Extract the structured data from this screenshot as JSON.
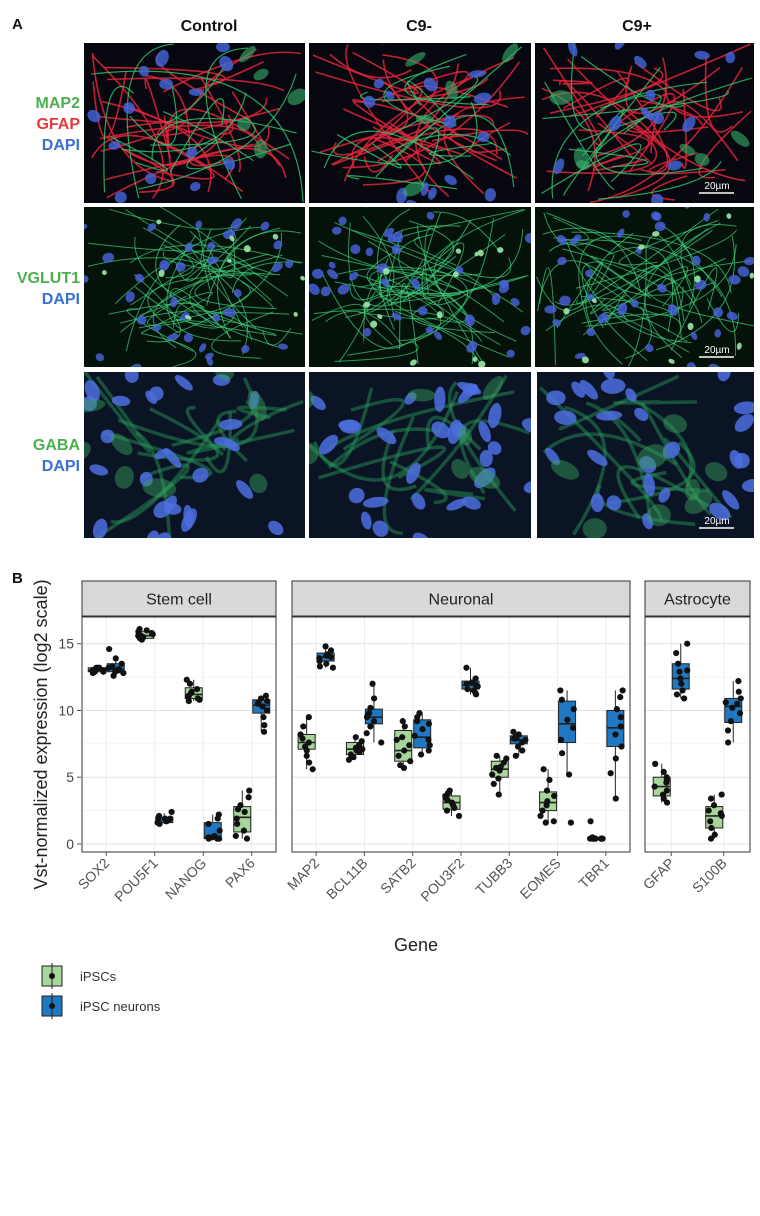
{
  "panelA": {
    "letter": "A",
    "columns": [
      "Control",
      "C9-",
      "C9+"
    ],
    "rows": [
      {
        "labels": [
          {
            "text": "MAP2",
            "color": "#4caf50"
          },
          {
            "text": "GFAP",
            "color": "#e53935"
          },
          {
            "text": "DAPI",
            "color": "#3a6fd8"
          }
        ]
      },
      {
        "labels": [
          {
            "text": "VGLUT1",
            "color": "#4caf50"
          },
          {
            "text": "DAPI",
            "color": "#3a6fd8"
          }
        ]
      },
      {
        "labels": [
          {
            "text": "GABA",
            "color": "#4caf50"
          },
          {
            "text": "DAPI",
            "color": "#3a6fd8"
          }
        ]
      }
    ],
    "scalebar": "20µm"
  },
  "panelB": {
    "letter": "B"
  },
  "chart_data": {
    "type": "box",
    "ylabel": "Vst-normalized expression (log2 scale)",
    "xlabel": "Gene",
    "ylim": [
      -0.6,
      17.0
    ],
    "yticks": [
      0,
      5,
      10,
      15
    ],
    "grid": true,
    "legend_position": "bottom-left",
    "series": [
      {
        "name": "iPSCs",
        "color": "#a8d59a"
      },
      {
        "name": "iPSC neurons",
        "color": "#1f78c1"
      }
    ],
    "facets": [
      {
        "title": "Stem cell",
        "genes": [
          {
            "name": "SOX2",
            "boxes": [
              {
                "series": 0,
                "q1": 12.9,
                "median": 13.0,
                "q3": 13.2,
                "lo": 12.8,
                "hi": 13.3,
                "points": [
                  13.0,
                  12.9,
                  13.1,
                  13.2,
                  12.8,
                  13.0,
                  13.1,
                  12.9,
                  13.2,
                  13.0
                ]
              },
              {
                "series": 1,
                "q1": 12.9,
                "median": 13.1,
                "q3": 13.5,
                "lo": 12.6,
                "hi": 13.9,
                "points": [
                  14.6,
                  13.9,
                  13.5,
                  13.3,
                  13.1,
                  13.0,
                  12.9,
                  12.8,
                  12.6,
                  13.2
                ]
              }
            ]
          },
          {
            "name": "POU5F1",
            "boxes": [
              {
                "series": 0,
                "q1": 15.4,
                "median": 15.6,
                "q3": 15.9,
                "lo": 15.3,
                "hi": 16.1,
                "points": [
                  16.1,
                  16.0,
                  15.9,
                  15.7,
                  15.6,
                  15.5,
                  15.4,
                  15.3,
                  15.8,
                  15.6
                ]
              },
              {
                "series": 1,
                "q1": 1.6,
                "median": 1.8,
                "q3": 2.0,
                "lo": 1.5,
                "hi": 2.3,
                "points": [
                  2.4,
                  2.1,
                  1.9,
                  1.8,
                  1.7,
                  1.6,
                  1.5,
                  1.9,
                  1.8,
                  2.0
                ]
              }
            ]
          },
          {
            "name": "NANOG",
            "boxes": [
              {
                "series": 0,
                "q1": 10.9,
                "median": 11.2,
                "q3": 11.7,
                "lo": 10.7,
                "hi": 12.3,
                "points": [
                  12.3,
                  12.0,
                  11.6,
                  11.3,
                  11.1,
                  10.9,
                  10.8,
                  10.7,
                  11.4,
                  11.0
                ]
              },
              {
                "series": 1,
                "q1": 0.4,
                "median": 0.5,
                "q3": 1.6,
                "lo": 0.4,
                "hi": 2.2,
                "points": [
                  2.2,
                  1.9,
                  1.5,
                  1.0,
                  0.6,
                  0.5,
                  0.4,
                  0.4,
                  0.4,
                  0.5
                ]
              }
            ]
          },
          {
            "name": "PAX6",
            "boxes": [
              {
                "series": 0,
                "q1": 0.9,
                "median": 2.0,
                "q3": 2.8,
                "lo": 0.4,
                "hi": 4.0,
                "points": [
                  4.0,
                  3.5,
                  2.9,
                  2.4,
                  1.9,
                  1.5,
                  1.0,
                  0.6,
                  0.4,
                  2.6
                ]
              },
              {
                "series": 1,
                "q1": 9.8,
                "median": 10.4,
                "q3": 10.8,
                "lo": 8.4,
                "hi": 11.1,
                "points": [
                  11.1,
                  10.9,
                  10.7,
                  10.5,
                  10.3,
                  10.0,
                  9.5,
                  8.9,
                  8.4,
                  10.6
                ]
              }
            ]
          }
        ]
      },
      {
        "title": "Neuronal",
        "genes": [
          {
            "name": "MAP2",
            "boxes": [
              {
                "series": 0,
                "q1": 7.1,
                "median": 7.6,
                "q3": 8.2,
                "lo": 5.6,
                "hi": 9.5,
                "points": [
                  9.5,
                  8.8,
                  8.2,
                  7.9,
                  7.6,
                  7.3,
                  7.0,
                  6.6,
                  6.1,
                  5.6
                ]
              },
              {
                "series": 1,
                "q1": 13.7,
                "median": 14.0,
                "q3": 14.3,
                "lo": 13.2,
                "hi": 14.8,
                "points": [
                  14.8,
                  14.5,
                  14.2,
                  14.0,
                  13.9,
                  13.7,
                  13.5,
                  13.3,
                  14.1,
                  13.2
                ]
              }
            ]
          },
          {
            "name": "BCL11B",
            "boxes": [
              {
                "series": 0,
                "q1": 6.7,
                "median": 7.1,
                "q3": 7.6,
                "lo": 6.3,
                "hi": 8.0,
                "points": [
                  8.0,
                  7.7,
                  7.4,
                  7.2,
                  7.0,
                  6.9,
                  6.7,
                  6.5,
                  6.3,
                  7.1
                ]
              },
              {
                "series": 1,
                "q1": 9.0,
                "median": 9.5,
                "q3": 10.1,
                "lo": 7.6,
                "hi": 12.0,
                "points": [
                  12.0,
                  10.9,
                  10.2,
                  9.8,
                  9.5,
                  9.2,
                  8.8,
                  8.3,
                  7.6,
                  9.6
                ]
              }
            ]
          },
          {
            "name": "SATB2",
            "boxes": [
              {
                "series": 0,
                "q1": 6.2,
                "median": 7.0,
                "q3": 8.5,
                "lo": 5.7,
                "hi": 9.2,
                "points": [
                  9.2,
                  8.8,
                  8.0,
                  7.4,
                  7.0,
                  6.6,
                  6.2,
                  5.9,
                  5.7,
                  7.8
                ]
              },
              {
                "series": 1,
                "q1": 7.2,
                "median": 8.0,
                "q3": 9.3,
                "lo": 6.7,
                "hi": 9.8,
                "points": [
                  9.8,
                  9.5,
                  9.0,
                  8.6,
                  8.1,
                  7.8,
                  7.4,
                  7.0,
                  6.7,
                  9.2
                ]
              }
            ]
          },
          {
            "name": "POU3F2",
            "boxes": [
              {
                "series": 0,
                "q1": 2.6,
                "median": 3.1,
                "q3": 3.6,
                "lo": 2.1,
                "hi": 4.0,
                "points": [
                  4.0,
                  3.8,
                  3.6,
                  3.3,
                  3.1,
                  2.9,
                  2.7,
                  2.5,
                  2.1,
                  3.4
                ]
              },
              {
                "series": 1,
                "q1": 11.6,
                "median": 11.9,
                "q3": 12.2,
                "lo": 11.2,
                "hi": 13.2,
                "points": [
                  13.2,
                  12.4,
                  12.1,
                  11.9,
                  11.8,
                  11.6,
                  11.5,
                  11.3,
                  11.2,
                  12.0
                ]
              }
            ]
          },
          {
            "name": "TUBB3",
            "boxes": [
              {
                "series": 0,
                "q1": 5.0,
                "median": 5.6,
                "q3": 6.2,
                "lo": 3.7,
                "hi": 6.6,
                "points": [
                  6.6,
                  6.4,
                  6.1,
                  5.8,
                  5.5,
                  5.2,
                  4.9,
                  4.5,
                  3.7,
                  5.7
                ]
              },
              {
                "series": 1,
                "q1": 7.5,
                "median": 7.8,
                "q3": 8.1,
                "lo": 6.6,
                "hi": 8.4,
                "points": [
                  8.4,
                  8.2,
                  8.0,
                  7.9,
                  7.8,
                  7.6,
                  7.3,
                  7.0,
                  6.6,
                  7.9
                ]
              }
            ]
          },
          {
            "name": "EOMES",
            "boxes": [
              {
                "series": 0,
                "q1": 2.5,
                "median": 3.1,
                "q3": 3.9,
                "lo": 1.6,
                "hi": 5.6,
                "points": [
                  5.6,
                  4.8,
                  4.0,
                  3.6,
                  3.2,
                  2.9,
                  2.5,
                  2.1,
                  1.7,
                  1.6
                ]
              },
              {
                "series": 1,
                "q1": 7.6,
                "median": 9.0,
                "q3": 10.7,
                "lo": 5.2,
                "hi": 11.5,
                "points": [
                  11.5,
                  10.8,
                  10.1,
                  9.3,
                  8.7,
                  7.8,
                  6.8,
                  5.2,
                  1.6
                ]
              }
            ]
          },
          {
            "name": "TBR1",
            "boxes": [
              {
                "series": 0,
                "q1": 0.4,
                "median": 0.4,
                "q3": 0.5,
                "lo": 0.4,
                "hi": 0.5,
                "points": [
                  1.7,
                  0.5,
                  0.4,
                  0.4,
                  0.4,
                  0.4,
                  0.4,
                  0.4,
                  0.4,
                  0.4
                ]
              },
              {
                "series": 1,
                "q1": 7.3,
                "median": 8.7,
                "q3": 10.0,
                "lo": 3.4,
                "hi": 11.5,
                "points": [
                  11.5,
                  11.0,
                  10.1,
                  9.5,
                  8.8,
                  8.2,
                  7.3,
                  6.4,
                  5.3,
                  3.4
                ]
              }
            ]
          }
        ]
      },
      {
        "title": "Astrocyte",
        "genes": [
          {
            "name": "GFAP",
            "boxes": [
              {
                "series": 0,
                "q1": 3.6,
                "median": 4.3,
                "q3": 5.0,
                "lo": 3.1,
                "hi": 6.0,
                "points": [
                  6.0,
                  5.4,
                  5.0,
                  4.6,
                  4.3,
                  4.0,
                  3.7,
                  3.4,
                  3.1,
                  4.8
                ]
              },
              {
                "series": 1,
                "q1": 11.6,
                "median": 12.4,
                "q3": 13.5,
                "lo": 10.9,
                "hi": 15.0,
                "points": [
                  15.0,
                  14.3,
                  13.5,
                  12.9,
                  12.4,
                  12.0,
                  11.5,
                  11.2,
                  10.9,
                  13.0
                ]
              }
            ]
          },
          {
            "name": "S100B",
            "boxes": [
              {
                "series": 0,
                "q1": 1.2,
                "median": 2.1,
                "q3": 2.8,
                "lo": 0.4,
                "hi": 3.7,
                "points": [
                  3.7,
                  3.4,
                  2.9,
                  2.5,
                  2.1,
                  1.7,
                  1.2,
                  0.7,
                  0.4,
                  2.3
                ]
              },
              {
                "series": 1,
                "q1": 9.1,
                "median": 10.3,
                "q3": 10.9,
                "lo": 7.6,
                "hi": 12.2,
                "points": [
                  12.2,
                  11.4,
                  10.9,
                  10.5,
                  10.2,
                  9.8,
                  9.2,
                  8.5,
                  7.6,
                  10.6
                ]
              }
            ]
          }
        ]
      }
    ]
  }
}
